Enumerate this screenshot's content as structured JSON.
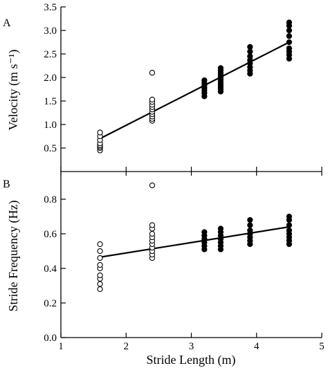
{
  "chart_data": [
    {
      "panel": "A",
      "type": "scatter",
      "ylabel": "Velocity (m s⁻¹)",
      "ylim": [
        0,
        3.5
      ],
      "yticks": [
        "0.5",
        "1.0",
        "1.5",
        "2.0",
        "2.5",
        "3.0",
        "3.5"
      ],
      "xlim": [
        1,
        5
      ],
      "fit_line": {
        "x": [
          1.6,
          4.5
        ],
        "y": [
          0.7,
          2.75
        ]
      },
      "series": [
        {
          "marker": "open-circle",
          "points": [
            [
              1.6,
              0.45
            ],
            [
              1.6,
              0.5
            ],
            [
              1.6,
              0.53
            ],
            [
              1.6,
              0.56
            ],
            [
              1.6,
              0.6
            ],
            [
              1.6,
              0.67
            ],
            [
              1.6,
              0.75
            ],
            [
              1.6,
              0.83
            ],
            [
              2.4,
              1.08
            ],
            [
              2.4,
              1.12
            ],
            [
              2.4,
              1.17
            ],
            [
              2.4,
              1.22
            ],
            [
              2.4,
              1.27
            ],
            [
              2.4,
              1.32
            ],
            [
              2.4,
              1.37
            ],
            [
              2.4,
              1.42
            ],
            [
              2.4,
              1.48
            ],
            [
              2.4,
              1.53
            ],
            [
              2.4,
              2.1
            ]
          ]
        },
        {
          "marker": "filled-circle",
          "points": [
            [
              3.2,
              1.6
            ],
            [
              3.2,
              1.67
            ],
            [
              3.2,
              1.73
            ],
            [
              3.2,
              1.78
            ],
            [
              3.2,
              1.83
            ],
            [
              3.2,
              1.88
            ],
            [
              3.2,
              1.94
            ],
            [
              3.45,
              1.7
            ],
            [
              3.45,
              1.75
            ],
            [
              3.45,
              1.8
            ],
            [
              3.45,
              1.85
            ],
            [
              3.45,
              1.9
            ],
            [
              3.45,
              1.95
            ],
            [
              3.45,
              2.0
            ],
            [
              3.45,
              2.05
            ],
            [
              3.45,
              2.1
            ],
            [
              3.45,
              2.15
            ],
            [
              3.45,
              2.2
            ],
            [
              3.9,
              2.08
            ],
            [
              3.9,
              2.15
            ],
            [
              3.9,
              2.22
            ],
            [
              3.9,
              2.3
            ],
            [
              3.9,
              2.37
            ],
            [
              3.9,
              2.45
            ],
            [
              3.9,
              2.55
            ],
            [
              3.9,
              2.65
            ],
            [
              4.5,
              2.4
            ],
            [
              4.5,
              2.48
            ],
            [
              4.5,
              2.55
            ],
            [
              4.5,
              2.62
            ],
            [
              4.5,
              2.75
            ],
            [
              4.5,
              2.88
            ],
            [
              4.5,
              3.0
            ],
            [
              4.5,
              3.1
            ],
            [
              4.5,
              3.17
            ]
          ]
        }
      ]
    },
    {
      "panel": "B",
      "type": "scatter",
      "xlabel": "Stride Length (m)",
      "ylabel": "Stride Frequency (Hz)",
      "ylim": [
        0,
        0.96
      ],
      "yticks": [
        "0.0",
        "0.2",
        "0.4",
        "0.6",
        "0.8"
      ],
      "xlim": [
        1,
        5
      ],
      "xticks": [
        "1",
        "2",
        "3",
        "4",
        "5"
      ],
      "fit_line": {
        "x": [
          1.6,
          4.5
        ],
        "y": [
          0.465,
          0.64
        ]
      },
      "series": [
        {
          "marker": "open-circle",
          "points": [
            [
              1.6,
              0.28
            ],
            [
              1.6,
              0.31
            ],
            [
              1.6,
              0.34
            ],
            [
              1.6,
              0.36
            ],
            [
              1.6,
              0.4
            ],
            [
              1.6,
              0.42
            ],
            [
              1.6,
              0.46
            ],
            [
              1.6,
              0.5
            ],
            [
              1.6,
              0.54
            ],
            [
              2.4,
              0.46
            ],
            [
              2.4,
              0.48
            ],
            [
              2.4,
              0.5
            ],
            [
              2.4,
              0.52
            ],
            [
              2.4,
              0.54
            ],
            [
              2.4,
              0.56
            ],
            [
              2.4,
              0.58
            ],
            [
              2.4,
              0.6
            ],
            [
              2.4,
              0.63
            ],
            [
              2.4,
              0.65
            ],
            [
              2.4,
              0.88
            ]
          ]
        },
        {
          "marker": "filled-circle",
          "points": [
            [
              3.2,
              0.51
            ],
            [
              3.2,
              0.53
            ],
            [
              3.2,
              0.55
            ],
            [
              3.2,
              0.57
            ],
            [
              3.2,
              0.59
            ],
            [
              3.2,
              0.61
            ],
            [
              3.45,
              0.51
            ],
            [
              3.45,
              0.53
            ],
            [
              3.45,
              0.55
            ],
            [
              3.45,
              0.57
            ],
            [
              3.45,
              0.59
            ],
            [
              3.45,
              0.61
            ],
            [
              3.45,
              0.63
            ],
            [
              3.9,
              0.54
            ],
            [
              3.9,
              0.56
            ],
            [
              3.9,
              0.58
            ],
            [
              3.9,
              0.6
            ],
            [
              3.9,
              0.62
            ],
            [
              3.9,
              0.65
            ],
            [
              3.9,
              0.68
            ],
            [
              4.5,
              0.54
            ],
            [
              4.5,
              0.56
            ],
            [
              4.5,
              0.58
            ],
            [
              4.5,
              0.6
            ],
            [
              4.5,
              0.62
            ],
            [
              4.5,
              0.65
            ],
            [
              4.5,
              0.68
            ],
            [
              4.5,
              0.7
            ]
          ]
        }
      ]
    }
  ]
}
